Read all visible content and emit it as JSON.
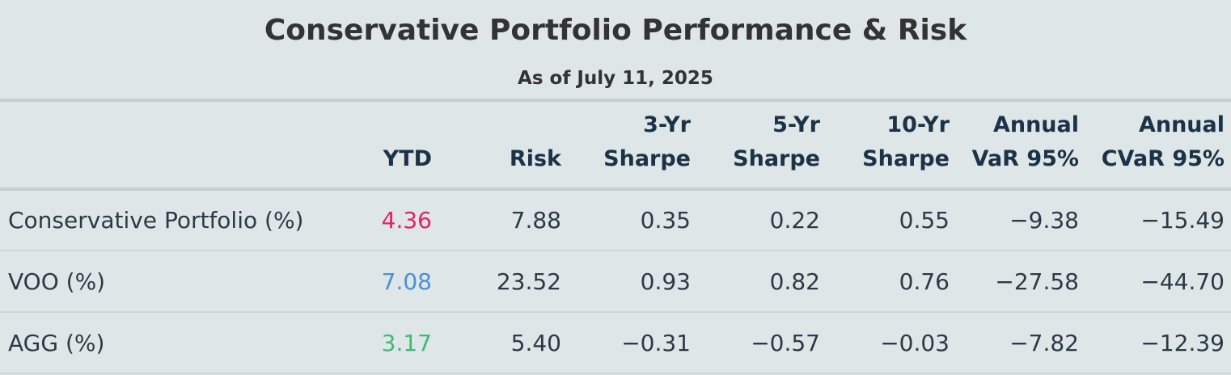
{
  "title": "Conservative Portfolio Performance & Risk",
  "subtitle": "As of July 11, 2025",
  "columns": [
    "",
    "YTD",
    "Risk",
    "3-Yr Sharpe",
    "5-Yr Sharpe",
    "10-Yr Sharpe",
    "Annual VaR 95%",
    "Annual CVaR 95%"
  ],
  "rows": [
    {
      "label": "Conservative Portfolio (%)",
      "ytd": "4.36",
      "ytd_color": "#e0245e",
      "risk": "7.88",
      "sharpe_3yr": "0.35",
      "sharpe_5yr": "0.22",
      "sharpe_10yr": "0.55",
      "var95": "−9.38",
      "cvar95": "−15.49"
    },
    {
      "label": "VOO (%)",
      "ytd": "7.08",
      "ytd_color": "#4a90d9",
      "risk": "23.52",
      "sharpe_3yr": "0.93",
      "sharpe_5yr": "0.82",
      "sharpe_10yr": "0.76",
      "var95": "−27.58",
      "cvar95": "−44.70"
    },
    {
      "label": "AGG (%)",
      "ytd": "3.17",
      "ytd_color": "#3dbb6e",
      "risk": "5.40",
      "sharpe_3yr": "−0.31",
      "sharpe_5yr": "−0.57",
      "sharpe_10yr": "−0.03",
      "var95": "−7.82",
      "cvar95": "−12.39"
    }
  ]
}
